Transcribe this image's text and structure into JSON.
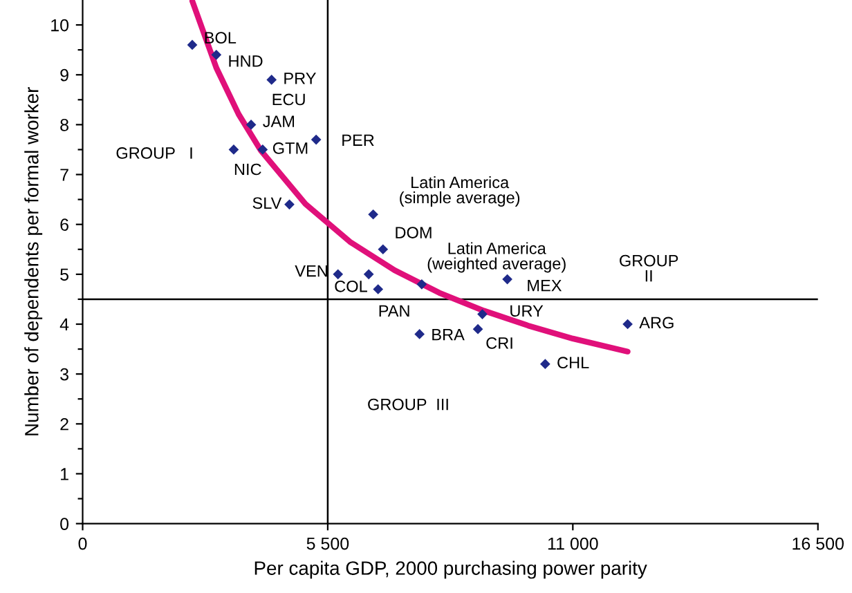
{
  "chart_data": {
    "type": "scatter",
    "xlabel": "Per capita GDP, 2000 purchasing power parity",
    "ylabel": "Number of dependents per formal worker",
    "xlim": [
      0,
      16500
    ],
    "xticks": [
      {
        "value": 0,
        "label": "0"
      },
      {
        "value": 5500,
        "label": "5 500"
      },
      {
        "value": 11000,
        "label": "11 000"
      },
      {
        "value": 16500,
        "label": "16 500"
      }
    ],
    "ylim": [
      0,
      10.5
    ],
    "yticks": [
      0,
      {
        "value": 0.5,
        "label": null
      },
      1,
      {
        "value": 1.5,
        "label": null
      },
      2,
      {
        "value": 2.5,
        "label": null
      },
      3,
      {
        "value": 3.5,
        "label": null
      },
      4,
      {
        "value": 4.5,
        "label": null
      },
      5,
      {
        "value": 5.5,
        "label": null
      },
      6,
      {
        "value": 6.5,
        "label": null
      },
      7,
      {
        "value": 7.5,
        "label": null
      },
      8,
      {
        "value": 8.5,
        "label": null
      },
      9,
      {
        "value": 9.5,
        "label": null
      },
      10
    ],
    "grid": false,
    "legend": false,
    "series": [
      {
        "marker": "diamond",
        "color": "#1f2a8a",
        "x": [
          2460,
          3000,
          4240,
          3780,
          3390,
          4040,
          5240,
          4640,
          6520,
          6740,
          5730,
          6420,
          6630,
          7610,
          9530,
          8970,
          7560,
          8870,
          10380,
          12230
        ],
        "values": [
          9.6,
          9.4,
          8.9,
          8.0,
          7.5,
          7.5,
          7.7,
          6.4,
          6.2,
          5.5,
          5.0,
          5.0,
          4.7,
          4.8,
          4.9,
          4.2,
          3.8,
          3.9,
          3.2,
          4.0
        ]
      },
      {
        "type": "line",
        "color": "#e0107a",
        "line_style": "solid",
        "x": [
          2460,
          3000,
          3500,
          4000,
          5000,
          6000,
          7000,
          8000,
          9000,
          10000,
          11000,
          12230
        ],
        "values": [
          10.48,
          9.14,
          8.21,
          7.48,
          6.41,
          5.65,
          5.08,
          4.63,
          4.27,
          3.97,
          3.71,
          3.45
        ]
      }
    ],
    "ref_lines": [
      {
        "axis": "x",
        "value": 5500,
        "color": "#000000"
      },
      {
        "axis": "y",
        "value": 4.5,
        "color": "#000000"
      }
    ],
    "annotations": [
      {
        "text": "BOL",
        "x": 2460,
        "y": 9.6
      },
      {
        "text": "HND",
        "x": 3000,
        "y": 9.4
      },
      {
        "text": "PRY",
        "x": 4240,
        "y": 8.9
      },
      {
        "text": "ECU",
        "x": 4240,
        "y": 8.9
      },
      {
        "text": "JAM",
        "x": 3780,
        "y": 8.0
      },
      {
        "text": "NIC",
        "x": 3390,
        "y": 7.5
      },
      {
        "text": "GTM",
        "x": 4040,
        "y": 7.5
      },
      {
        "text": "PER",
        "x": 5240,
        "y": 7.7
      },
      {
        "text": "SLV",
        "x": 4640,
        "y": 6.4
      },
      {
        "text": "Latin America\n(simple average)",
        "x": 6520,
        "y": 6.2
      },
      {
        "text": "DOM",
        "x": 6740,
        "y": 5.5
      },
      {
        "text": "VEN",
        "x": 5730,
        "y": 5.0
      },
      {
        "text": "COL",
        "x": 6420,
        "y": 5.0
      },
      {
        "text": "PAN",
        "x": 6630,
        "y": 4.7
      },
      {
        "text": "Latin America\n(weighted average)",
        "x": 7610,
        "y": 4.8
      },
      {
        "text": "MEX",
        "x": 9530,
        "y": 4.9
      },
      {
        "text": "URY",
        "x": 8970,
        "y": 4.2
      },
      {
        "text": "BRA",
        "x": 7560,
        "y": 3.8
      },
      {
        "text": "CRI",
        "x": 8870,
        "y": 3.9
      },
      {
        "text": "CHL",
        "x": 10380,
        "y": 3.2
      },
      {
        "text": "ARG",
        "x": 12230,
        "y": 4.0
      },
      "GROUP   I",
      "GROUP\nII",
      "GROUP  III"
    ]
  }
}
